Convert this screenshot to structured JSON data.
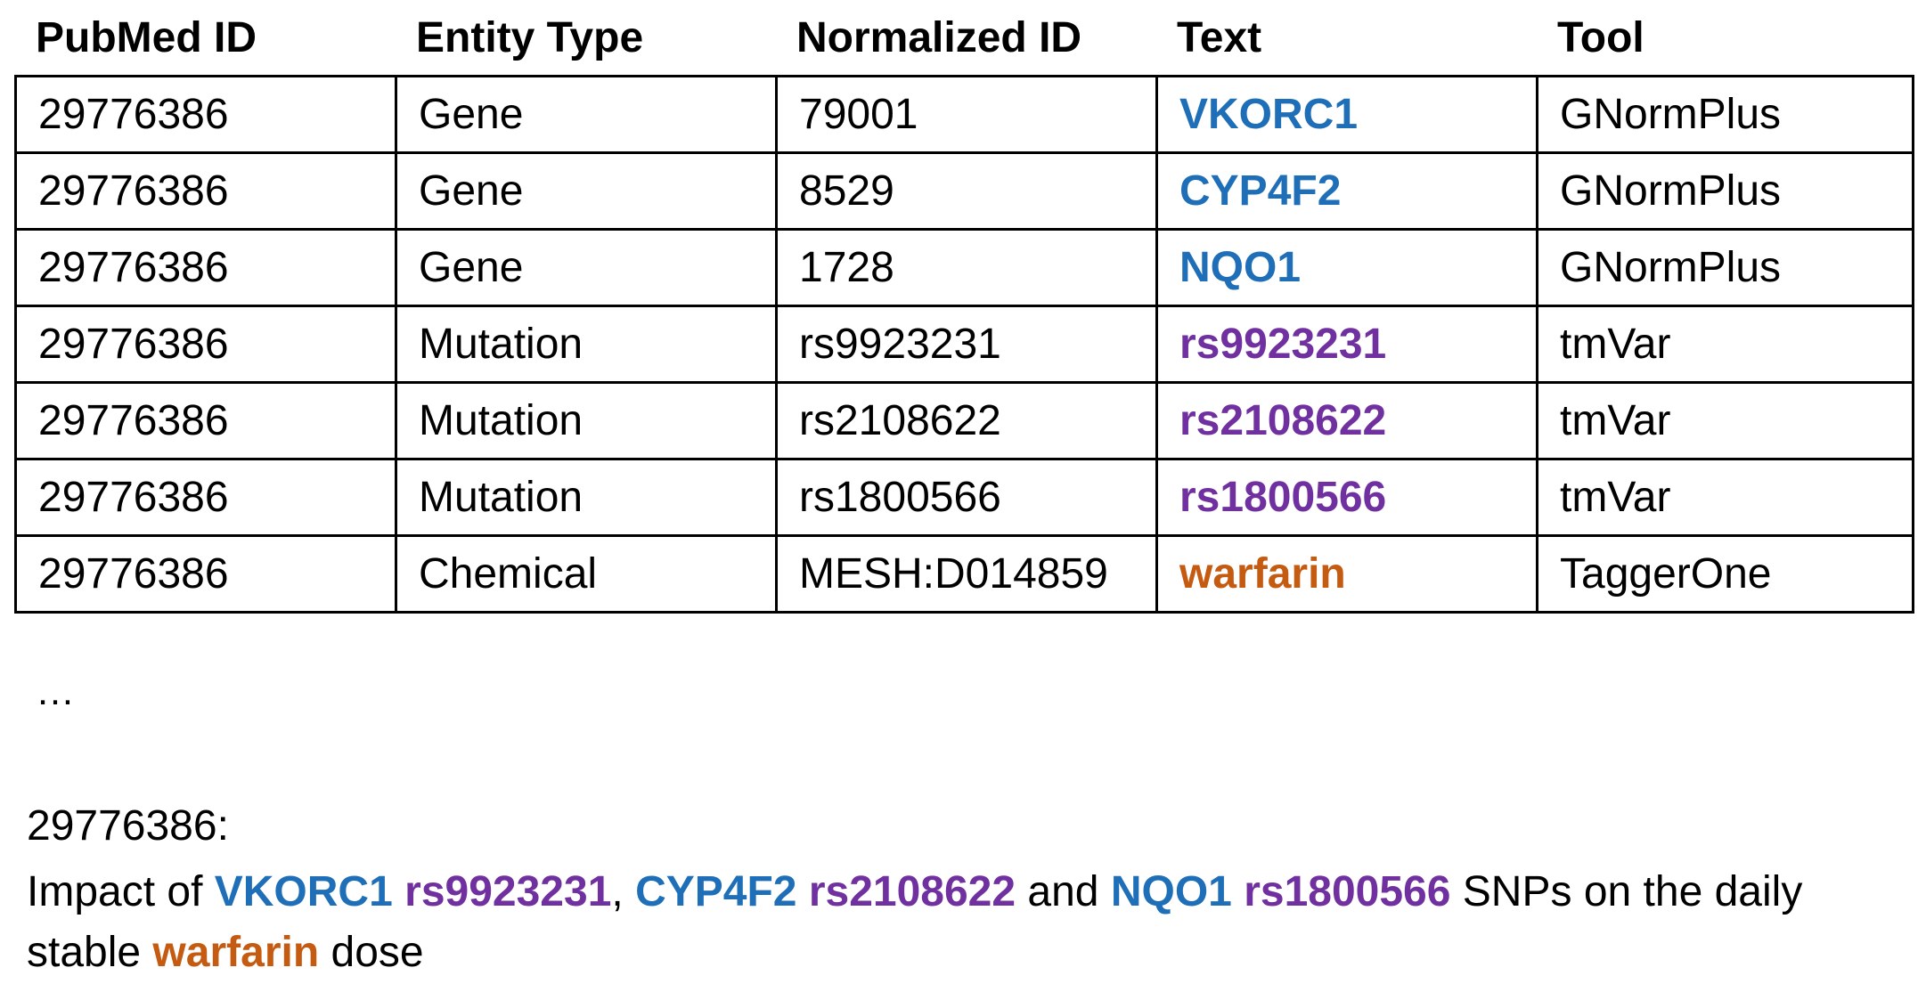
{
  "headers": [
    "PubMed ID",
    "Entity Type",
    "Normalized ID",
    "Text",
    "Tool"
  ],
  "rows": [
    {
      "pmid": "29776386",
      "type": "Gene",
      "norm": "79001",
      "text": "VKORC1",
      "tool": "GNormPlus",
      "kind": "gene"
    },
    {
      "pmid": "29776386",
      "type": "Gene",
      "norm": "8529",
      "text": "CYP4F2",
      "tool": "GNormPlus",
      "kind": "gene"
    },
    {
      "pmid": "29776386",
      "type": "Gene",
      "norm": "1728",
      "text": "NQO1",
      "tool": "GNormPlus",
      "kind": "gene"
    },
    {
      "pmid": "29776386",
      "type": "Mutation",
      "norm": "rs9923231",
      "text": "rs9923231",
      "tool": "tmVar",
      "kind": "mut"
    },
    {
      "pmid": "29776386",
      "type": "Mutation",
      "norm": "rs2108622",
      "text": "rs2108622",
      "tool": "tmVar",
      "kind": "mut"
    },
    {
      "pmid": "29776386",
      "type": "Mutation",
      "norm": "rs1800566",
      "text": "rs1800566",
      "tool": "tmVar",
      "kind": "mut"
    },
    {
      "pmid": "29776386",
      "type": "Chemical",
      "norm": "MESH:D014859",
      "text": "warfarin",
      "tool": "TaggerOne",
      "kind": "chem"
    }
  ],
  "ellipsis": "…",
  "caption": {
    "pmid": "29776386:",
    "segments": [
      {
        "text": "Impact of ",
        "kind": "plain"
      },
      {
        "text": "VKORC1",
        "kind": "gene"
      },
      {
        "text": " ",
        "kind": "plain"
      },
      {
        "text": "rs9923231",
        "kind": "mut"
      },
      {
        "text": ", ",
        "kind": "plain"
      },
      {
        "text": "CYP4F2",
        "kind": "gene"
      },
      {
        "text": " ",
        "kind": "plain"
      },
      {
        "text": "rs2108622",
        "kind": "mut"
      },
      {
        "text": " and ",
        "kind": "plain"
      },
      {
        "text": "NQO1",
        "kind": "gene"
      },
      {
        "text": " ",
        "kind": "plain"
      },
      {
        "text": "rs1800566",
        "kind": "mut"
      },
      {
        "text": " SNPs on the daily stable ",
        "kind": "plain"
      },
      {
        "text": "warfarin",
        "kind": "chem"
      },
      {
        "text": " dose",
        "kind": "plain"
      }
    ]
  },
  "colors": {
    "gene": "#1f6fb8",
    "mutation": "#7030a0",
    "chemical": "#c55a11"
  }
}
